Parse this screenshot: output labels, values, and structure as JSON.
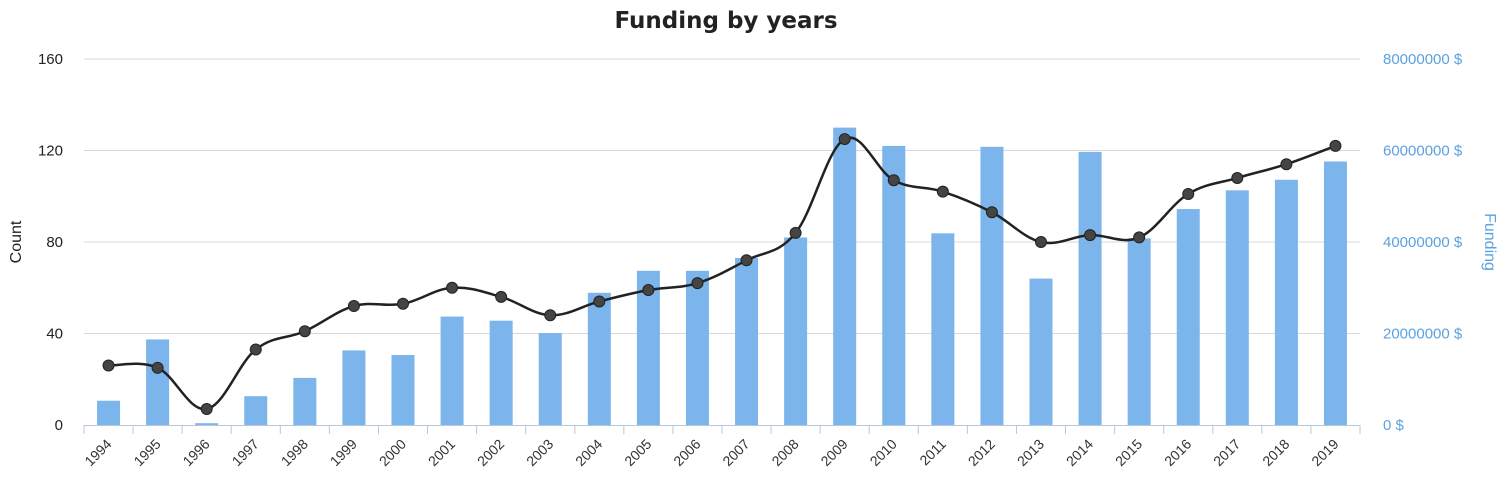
{
  "chart_data": {
    "type": "bar",
    "title": "Funding by years",
    "ylabel_left": "Count",
    "ylabel_right": "Funding",
    "categories": [
      "1994",
      "1995",
      "1996",
      "1997",
      "1998",
      "1999",
      "2000",
      "2001",
      "2002",
      "2003",
      "2004",
      "2005",
      "2006",
      "2007",
      "2008",
      "2009",
      "2010",
      "2011",
      "2012",
      "2013",
      "2014",
      "2015",
      "2016",
      "2017",
      "2018",
      "2019"
    ],
    "y_left_ticks": [
      "0",
      "40",
      "80",
      "120",
      "160"
    ],
    "y_right_ticks": [
      "0 $",
      "20000000 $",
      "40000000 $",
      "60000000 $",
      "80000000 $"
    ],
    "ylim_left": [
      0,
      160
    ],
    "ylim_right": [
      0,
      80000000
    ],
    "grid": true,
    "series": [
      {
        "name": "Funding",
        "type": "bar",
        "axis": "right",
        "color": "#7cb5ec",
        "values": [
          5300000,
          18700000,
          400000,
          6300000,
          10300000,
          16300000,
          15300000,
          23700000,
          22800000,
          20100000,
          28900000,
          33700000,
          33700000,
          36500000,
          41000000,
          65000000,
          61000000,
          41900000,
          60800000,
          32000000,
          59700000,
          40800000,
          47200000,
          51300000,
          53600000,
          57600000
        ]
      },
      {
        "name": "Count",
        "type": "line",
        "axis": "left",
        "color": "#222222",
        "values": [
          26,
          25,
          7,
          33,
          41,
          52,
          53,
          60,
          56,
          48,
          54,
          59,
          62,
          72,
          84,
          125,
          107,
          102,
          93,
          80,
          83,
          82,
          101,
          108,
          114,
          122
        ]
      }
    ]
  }
}
